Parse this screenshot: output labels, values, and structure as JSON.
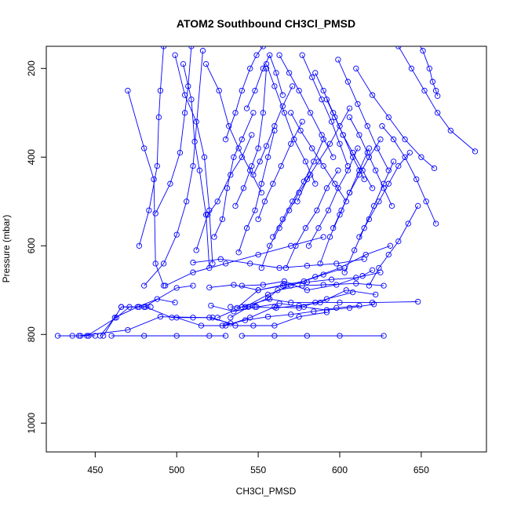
{
  "chart_data": {
    "type": "line",
    "title": "ATOM2 Southbound CH3Cl_PMSD",
    "xlabel": "CH3Cl_PMSD",
    "ylabel": "Pressure (mbar)",
    "xlim": [
      420,
      690
    ],
    "ylim": [
      1065,
      150
    ],
    "y_inverted": true,
    "x_ticks": [
      450,
      500,
      550,
      600,
      650
    ],
    "y_ticks": [
      200,
      400,
      600,
      800,
      1000
    ],
    "grid": false,
    "legend": "none",
    "color": "#0000ff",
    "series": [
      {
        "x": [
          427,
          436,
          441,
          446,
          450
        ],
        "y": [
          803,
          803,
          803,
          803,
          803
        ]
      },
      {
        "x": [
          445,
          463,
          471,
          477,
          480,
          484
        ],
        "y": [
          803,
          762,
          738,
          738,
          738,
          738
        ]
      },
      {
        "x": [
          453,
          462,
          476,
          488,
          499
        ],
        "y": [
          803,
          762,
          738,
          720,
          728
        ]
      },
      {
        "x": [
          455,
          466,
          480,
          500,
          510
        ],
        "y": [
          803,
          738,
          738,
          695,
          690
        ]
      },
      {
        "x": [
          460,
          480,
          500,
          520,
          530
        ],
        "y": [
          803,
          803,
          803,
          803,
          803
        ]
      },
      {
        "x": [
          440,
          470,
          490,
          520,
          533
        ],
        "y": [
          803,
          790,
          760,
          762,
          775
        ]
      },
      {
        "x": [
          540,
          560,
          580,
          600,
          627
        ],
        "y": [
          803,
          803,
          803,
          803,
          803
        ]
      },
      {
        "x": [
          466,
          481,
          497,
          510,
          522,
          536,
          547,
          560,
          575,
          592
        ],
        "y": [
          738,
          738,
          762,
          762,
          762,
          780,
          780,
          780,
          760,
          750
        ]
      },
      {
        "x": [
          500,
          515,
          530,
          545,
          560,
          575,
          592,
          608
        ],
        "y": [
          762,
          780,
          780,
          762,
          738,
          740,
          720,
          705
        ]
      },
      {
        "x": [
          525,
          540,
          557,
          570,
          585,
          600,
          620,
          648
        ],
        "y": [
          762,
          738,
          720,
          728,
          728,
          728,
          728,
          726
        ]
      },
      {
        "x": [
          533,
          548,
          561,
          575,
          588,
          604,
          622
        ],
        "y": [
          738,
          738,
          740,
          735,
          728,
          700,
          710
        ]
      },
      {
        "x": [
          533,
          544,
          556,
          562,
          577,
          590,
          610,
          627
        ],
        "y": [
          762,
          738,
          718,
          700,
          690,
          688,
          685,
          690
        ]
      },
      {
        "x": [
          537,
          550,
          566,
          578,
          590,
          603
        ],
        "y": [
          740,
          700,
          688,
          680,
          665,
          650
        ]
      },
      {
        "x": [
          540,
          553,
          566,
          580,
          598,
          614,
          620
        ],
        "y": [
          690,
          688,
          680,
          700,
          688,
          668,
          655
        ]
      },
      {
        "x": [
          542,
          556,
          570,
          585,
          600,
          616,
          631
        ],
        "y": [
          738,
          710,
          690,
          670,
          650,
          620,
          600
        ]
      },
      {
        "x": [
          470,
          480,
          486,
          487,
          492
        ],
        "y": [
          250,
          380,
          450,
          640,
          690
        ]
      },
      {
        "x": [
          477,
          483,
          488,
          489,
          490,
          492
        ],
        "y": [
          600,
          520,
          420,
          310,
          250,
          150
        ]
      },
      {
        "x": [
          487,
          496,
          502,
          505,
          507,
          509
        ],
        "y": [
          527,
          460,
          390,
          300,
          240,
          150
        ]
      },
      {
        "x": [
          480,
          492,
          500,
          506,
          510,
          516
        ],
        "y": [
          690,
          640,
          575,
          500,
          420,
          160
        ]
      },
      {
        "x": [
          499,
          505,
          512,
          517,
          520,
          522
        ],
        "y": [
          170,
          260,
          320,
          400,
          520,
          640
        ]
      },
      {
        "x": [
          504,
          509,
          511,
          514,
          518,
          520
        ],
        "y": [
          190,
          270,
          365,
          430,
          530,
          650
        ]
      },
      {
        "x": [
          512,
          519,
          525,
          533,
          540,
          546
        ],
        "y": [
          610,
          530,
          500,
          440,
          400,
          350
        ]
      },
      {
        "x": [
          518,
          526,
          532,
          538,
          545,
          552
        ],
        "y": [
          190,
          250,
          330,
          380,
          430,
          480
        ]
      },
      {
        "x": [
          523,
          528,
          531,
          535,
          540,
          547
        ],
        "y": [
          580,
          540,
          470,
          400,
          360,
          300
        ]
      },
      {
        "x": [
          530,
          536,
          540,
          545,
          549,
          553
        ],
        "y": [
          360,
          300,
          250,
          200,
          170,
          150
        ]
      },
      {
        "x": [
          536,
          541,
          546,
          550,
          553,
          555
        ],
        "y": [
          510,
          470,
          420,
          380,
          300,
          200
        ]
      },
      {
        "x": [
          538,
          543,
          548,
          552,
          556,
          560
        ],
        "y": [
          615,
          560,
          520,
          460,
          400,
          340
        ]
      },
      {
        "x": [
          543,
          548,
          553,
          557,
          561,
          565
        ],
        "y": [
          290,
          250,
          200,
          170,
          210,
          260
        ]
      },
      {
        "x": [
          547,
          551,
          555,
          560,
          565,
          571
        ],
        "y": [
          440,
          410,
          375,
          330,
          285,
          240
        ]
      },
      {
        "x": [
          550,
          554,
          559,
          564,
          570,
          577
        ],
        "y": [
          540,
          500,
          460,
          420,
          370,
          320
        ]
      },
      {
        "x": [
          552,
          557,
          563,
          569,
          575,
          582
        ],
        "y": [
          650,
          600,
          560,
          520,
          480,
          440
        ]
      },
      {
        "x": [
          555,
          560,
          566,
          572,
          579,
          585
        ],
        "y": [
          190,
          240,
          300,
          360,
          410,
          460
        ]
      },
      {
        "x": [
          559,
          565,
          571,
          578,
          584,
          590
        ],
        "y": [
          580,
          540,
          500,
          455,
          410,
          360
        ]
      },
      {
        "x": [
          563,
          569,
          575,
          582,
          589,
          596
        ],
        "y": [
          170,
          210,
          250,
          300,
          350,
          400
        ]
      },
      {
        "x": [
          567,
          573,
          579,
          586,
          592,
          599
        ],
        "y": [
          650,
          600,
          560,
          520,
          470,
          430
        ]
      },
      {
        "x": [
          570,
          576,
          583,
          590,
          597,
          604
        ],
        "y": [
          300,
          340,
          380,
          420,
          460,
          500
        ]
      },
      {
        "x": [
          574,
          580,
          587,
          594,
          600,
          606
        ],
        "y": [
          500,
          450,
          410,
          370,
          330,
          290
        ]
      },
      {
        "x": [
          577,
          583,
          589,
          595,
          600,
          605
        ],
        "y": [
          170,
          220,
          270,
          320,
          370,
          420
        ]
      },
      {
        "x": [
          581,
          587,
          593,
          599,
          605,
          611
        ],
        "y": [
          600,
          560,
          520,
          470,
          430,
          380
        ]
      },
      {
        "x": [
          585,
          590,
          596,
          602,
          608,
          615
        ],
        "y": [
          210,
          250,
          300,
          350,
          400,
          450
        ]
      },
      {
        "x": [
          588,
          594,
          600,
          606,
          612,
          618
        ],
        "y": [
          640,
          580,
          530,
          480,
          430,
          380
        ]
      },
      {
        "x": [
          592,
          597,
          602,
          608,
          614,
          620
        ],
        "y": [
          270,
          310,
          350,
          390,
          430,
          470
        ]
      },
      {
        "x": [
          596,
          601,
          606,
          612,
          618,
          625
        ],
        "y": [
          560,
          520,
          480,
          440,
          400,
          360
        ]
      },
      {
        "x": [
          599,
          605,
          611,
          617,
          623,
          630
        ],
        "y": [
          180,
          230,
          280,
          330,
          380,
          430
        ]
      },
      {
        "x": [
          603,
          609,
          615,
          621,
          627,
          633
        ],
        "y": [
          660,
          610,
          560,
          510,
          460,
          410
        ]
      },
      {
        "x": [
          606,
          612,
          617,
          622,
          627,
          632
        ],
        "y": [
          310,
          350,
          390,
          430,
          470,
          510
        ]
      },
      {
        "x": [
          612,
          618,
          624,
          630,
          636,
          643
        ],
        "y": [
          580,
          540,
          500,
          460,
          420,
          390
        ]
      },
      {
        "x": [
          618,
          624,
          630,
          636,
          642,
          648
        ],
        "y": [
          690,
          650,
          620,
          590,
          550,
          510
        ]
      },
      {
        "x": [
          626,
          633,
          640,
          647,
          653,
          659
        ],
        "y": [
          330,
          360,
          400,
          450,
          500,
          550
        ]
      },
      {
        "x": [
          636,
          644,
          652,
          660,
          668,
          683
        ],
        "y": [
          150,
          200,
          250,
          300,
          340,
          387
        ]
      },
      {
        "x": [
          646,
          651,
          655,
          657,
          659,
          660
        ],
        "y": [
          130,
          160,
          200,
          230,
          250,
          262
        ]
      },
      {
        "x": [
          610,
          620,
          630,
          640,
          650,
          658
        ],
        "y": [
          200,
          260,
          310,
          360,
          400,
          425
        ]
      },
      {
        "x": [
          520,
          535,
          550,
          565,
          580,
          595,
          610,
          625
        ],
        "y": [
          694,
          688,
          700,
          690,
          682,
          676,
          672,
          660
        ]
      },
      {
        "x": [
          510,
          527,
          545,
          563,
          580,
          598,
          615
        ],
        "y": [
          638,
          630,
          640,
          650,
          645,
          640,
          630
        ]
      },
      {
        "x": [
          493,
          510,
          530,
          550,
          570,
          590
        ],
        "y": [
          690,
          660,
          640,
          620,
          600,
          580
        ]
      },
      {
        "x": [
          521,
          535,
          549,
          563,
          578,
          592,
          606,
          621
        ],
        "y": [
          735,
          748,
          738,
          730,
          738,
          745,
          740,
          732
        ]
      },
      {
        "x": [
          528,
          542,
          556,
          570,
          584,
          598,
          612
        ],
        "y": [
          780,
          768,
          760,
          755,
          748,
          740,
          735
        ]
      }
    ]
  }
}
